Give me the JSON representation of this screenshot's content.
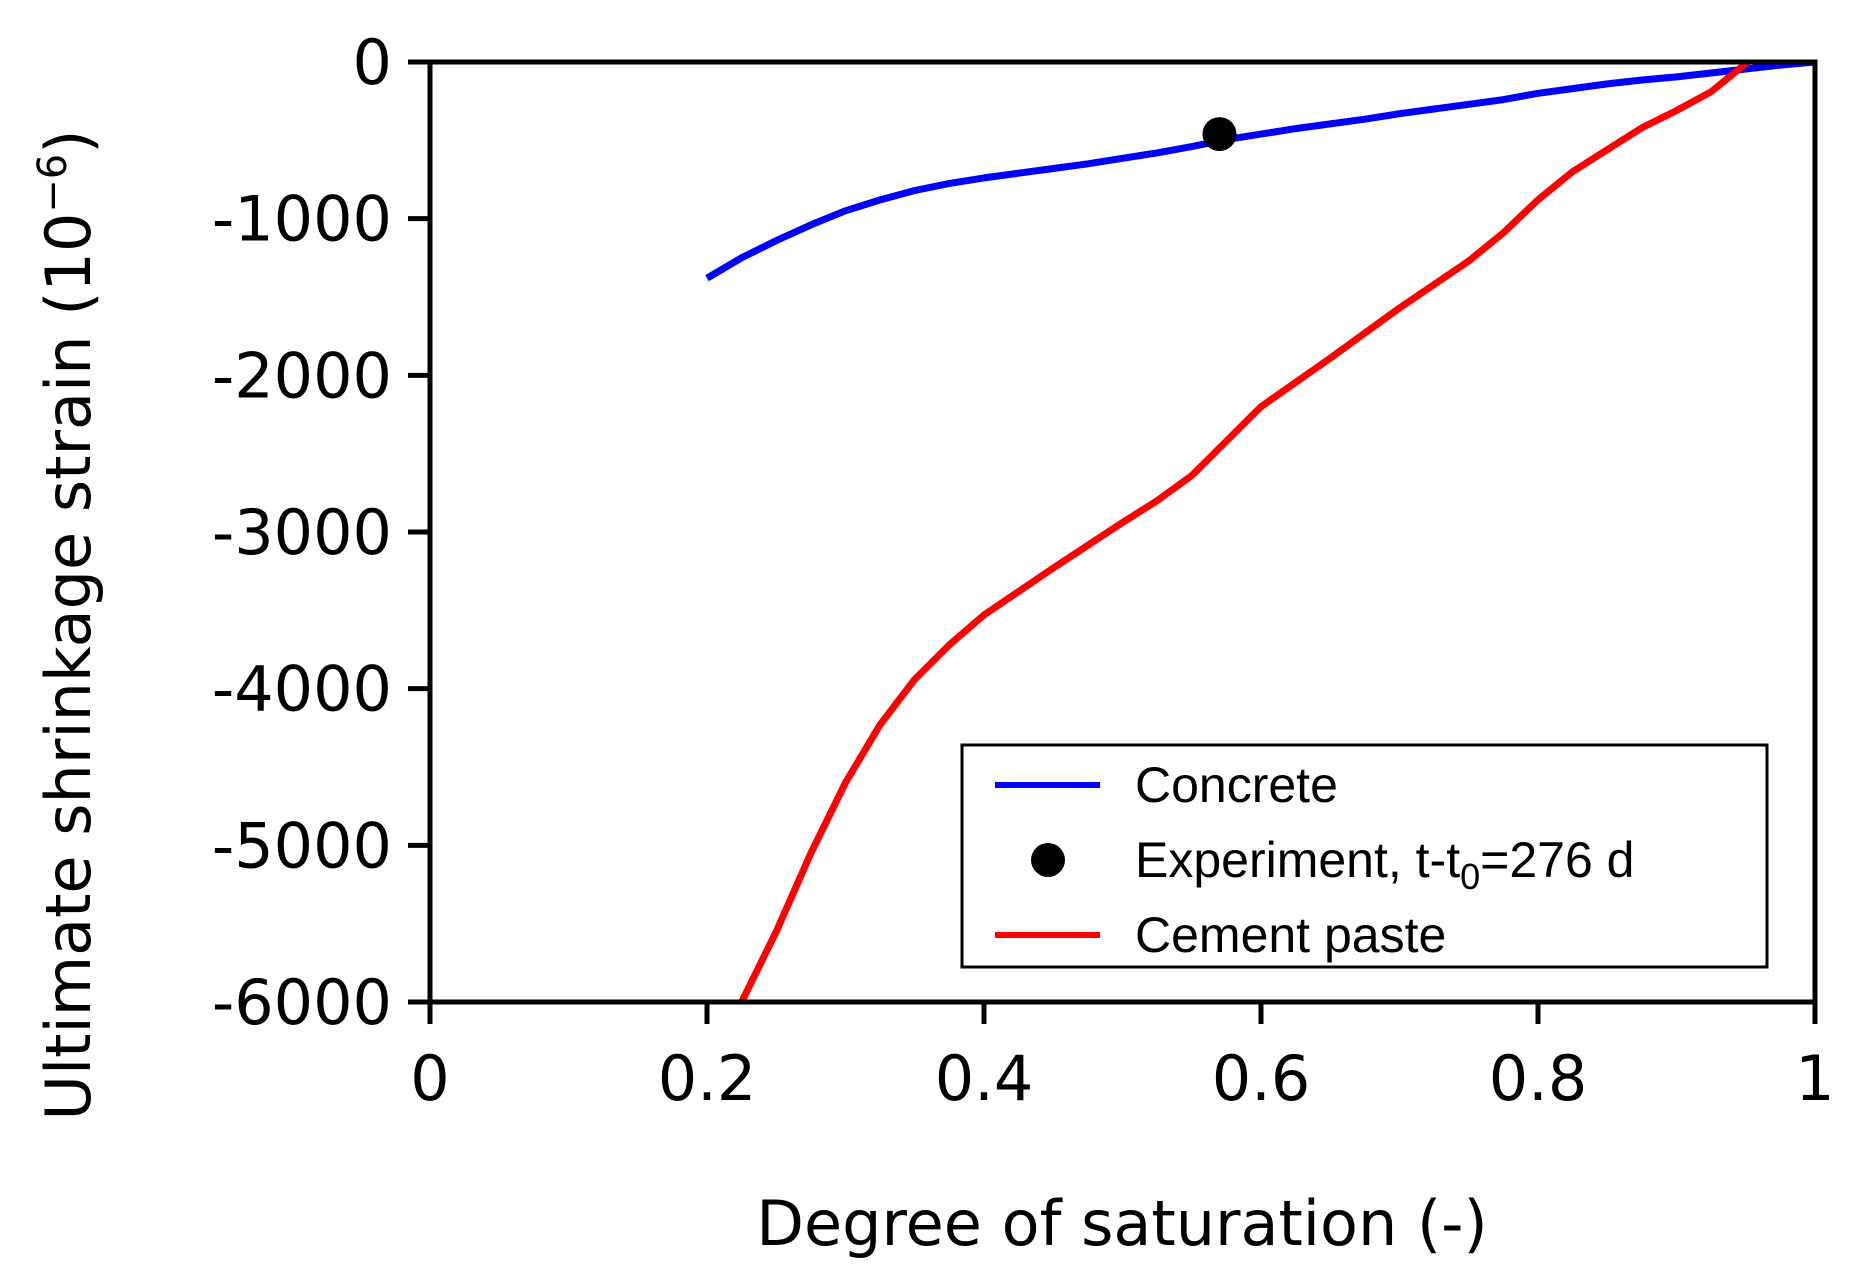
{
  "chart_data": {
    "type": "line",
    "xlabel": "Degree of saturation (-)",
    "ylabel_main": "Ultimate shrinkage strain (10",
    "ylabel_exp": "−6",
    "ylabel_close": ")",
    "xlim": [
      0,
      1
    ],
    "ylim": [
      -6000,
      0
    ],
    "xticks": [
      0,
      0.2,
      0.4,
      0.6,
      0.8,
      1
    ],
    "xtick_labels": [
      "0",
      "0.2",
      "0.4",
      "0.6",
      "0.8",
      "1"
    ],
    "yticks": [
      0,
      -1000,
      -2000,
      -3000,
      -4000,
      -5000,
      -6000
    ],
    "ytick_labels": [
      "0",
      "-1000",
      "-2000",
      "-3000",
      "-4000",
      "-5000",
      "-6000"
    ],
    "legend_position": "lower-right",
    "series": [
      {
        "name": "Concrete",
        "kind": "line",
        "color": "#0000ff",
        "x": [
          0.2,
          0.225,
          0.25,
          0.275,
          0.3,
          0.325,
          0.35,
          0.375,
          0.4,
          0.425,
          0.45,
          0.475,
          0.5,
          0.525,
          0.55,
          0.575,
          0.6,
          0.625,
          0.65,
          0.675,
          0.7,
          0.725,
          0.75,
          0.775,
          0.8,
          0.825,
          0.85,
          0.875,
          0.9,
          0.925,
          0.95,
          0.975,
          1.0
        ],
        "y": [
          -1380,
          -1250,
          -1140,
          -1040,
          -950,
          -880,
          -820,
          -775,
          -740,
          -710,
          -680,
          -650,
          -615,
          -580,
          -540,
          -495,
          -460,
          -425,
          -395,
          -365,
          -330,
          -300,
          -270,
          -240,
          -200,
          -170,
          -140,
          -115,
          -95,
          -70,
          -45,
          -20,
          0
        ]
      },
      {
        "name": "Experiment, t-t",
        "name_sub": "0",
        "name_tail": "=276 d",
        "kind": "point",
        "color": "#000000",
        "x": [
          0.57
        ],
        "y": [
          -460
        ]
      },
      {
        "name": "Cement paste",
        "kind": "line",
        "color": "#ff0000",
        "x": [
          0.225,
          0.25,
          0.275,
          0.3,
          0.325,
          0.35,
          0.375,
          0.4,
          0.45,
          0.5,
          0.525,
          0.55,
          0.6,
          0.65,
          0.7,
          0.75,
          0.775,
          0.8,
          0.825,
          0.85,
          0.875,
          0.9,
          0.925,
          0.95,
          0.975,
          1.0
        ],
        "y": [
          -6000,
          -5550,
          -5050,
          -4600,
          -4230,
          -3940,
          -3720,
          -3530,
          -3230,
          -2940,
          -2800,
          -2640,
          -2200,
          -1890,
          -1570,
          -1270,
          -1090,
          -880,
          -700,
          -560,
          -420,
          -310,
          -190,
          -10,
          180,
          0
        ]
      }
    ]
  }
}
